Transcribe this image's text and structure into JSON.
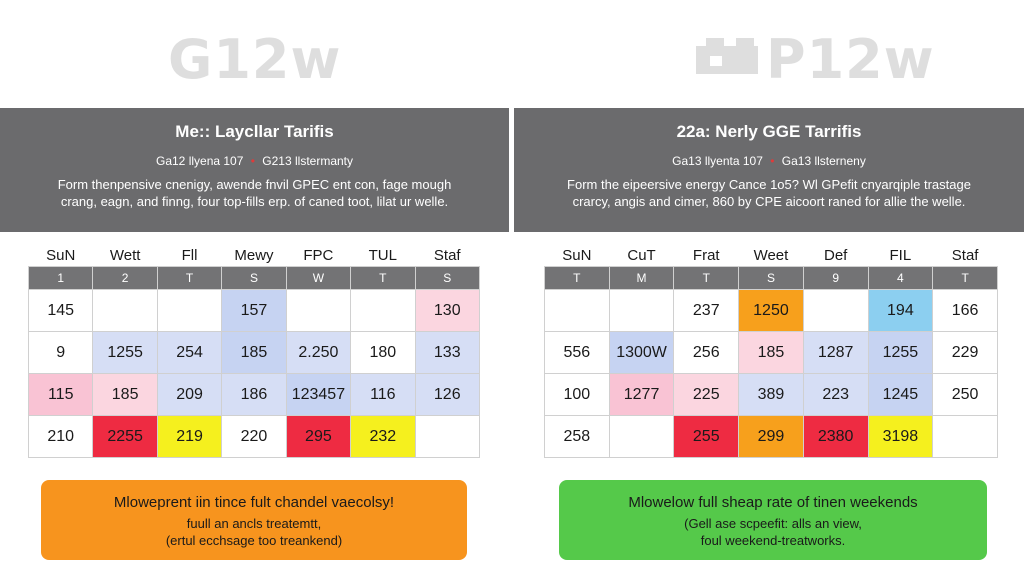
{
  "logos": {
    "left": "G12w",
    "right": "P12w"
  },
  "panels": [
    {
      "title": "Me:: Laycllar Tarifis",
      "sub_a": "Ga12 llyena 107",
      "sub_sep": "•",
      "sub_b": "G213 llstermanty",
      "desc_1": "Form thenpensive cnenigy, awende fnvil GPEC ent con, fage mough",
      "desc_2": "crang, eagn, and finng, four top-fills erp. of caned toot, lilat ur welle.",
      "days": [
        "SuN",
        "Wett",
        "Fll",
        "Mewy",
        "FPC",
        "TUL",
        "Staf"
      ],
      "nums": [
        "1",
        "2",
        "T",
        "S",
        "W",
        "T",
        "S"
      ],
      "rows": [
        [
          {
            "v": "145",
            "c": "white"
          },
          {
            "v": "",
            "c": "white"
          },
          {
            "v": "",
            "c": "white"
          },
          {
            "v": "157",
            "c": "blue"
          },
          {
            "v": "",
            "c": "white"
          },
          {
            "v": "",
            "c": "white"
          },
          {
            "v": "130",
            "c": "lpink"
          }
        ],
        [
          {
            "v": "9",
            "c": "white"
          },
          {
            "v": "1255",
            "c": "lblue"
          },
          {
            "v": "254",
            "c": "lblue"
          },
          {
            "v": "185",
            "c": "blue"
          },
          {
            "v": "2.250",
            "c": "lblue"
          },
          {
            "v": "180",
            "c": "white"
          },
          {
            "v": "133",
            "c": "lblue"
          }
        ],
        [
          {
            "v": "115",
            "c": "pink"
          },
          {
            "v": "185",
            "c": "lpink"
          },
          {
            "v": "209",
            "c": "lblue"
          },
          {
            "v": "186",
            "c": "lblue"
          },
          {
            "v": "123457",
            "c": "blue"
          },
          {
            "v": "116",
            "c": "lblue"
          },
          {
            "v": "126",
            "c": "lblue"
          }
        ],
        [
          {
            "v": "210",
            "c": "white"
          },
          {
            "v": "2255",
            "c": "red"
          },
          {
            "v": "219",
            "c": "yellow"
          },
          {
            "v": "220",
            "c": "white"
          },
          {
            "v": "295",
            "c": "red"
          },
          {
            "v": "232",
            "c": "yellow"
          },
          {
            "v": "",
            "c": "white"
          }
        ]
      ],
      "note_1": "Mloweprent iin tince fult chandel vaecolsy!",
      "note_2": "fuull an ancls treatemtt,",
      "note_3": "(ertul ecchsage too treankend)"
    },
    {
      "title": "22a: Nerly GGE Tarrifis",
      "sub_a": "Ga13 llyenta 107",
      "sub_sep": "•",
      "sub_b": "Ga13 llsterneny",
      "desc_1": "Form the eipeersive energy Cance 1o5? Wl GPefit cnyarqiple trastage",
      "desc_2": "crarcy, angis and cimer, 860 by CPE aicoort raned for allie the welle.",
      "days": [
        "SuN",
        "CuT",
        "Frat",
        "Weet",
        "Def",
        "FIL",
        "Staf"
      ],
      "nums": [
        "T",
        "M",
        "T",
        "S",
        "9",
        "4",
        "T"
      ],
      "rows": [
        [
          {
            "v": "",
            "c": "white"
          },
          {
            "v": "",
            "c": "white"
          },
          {
            "v": "237",
            "c": "white"
          },
          {
            "v": "1250",
            "c": "orange"
          },
          {
            "v": "",
            "c": "white"
          },
          {
            "v": "194",
            "c": "sky"
          },
          {
            "v": "166",
            "c": "white"
          }
        ],
        [
          {
            "v": "556",
            "c": "white"
          },
          {
            "v": "1300W",
            "c": "blue"
          },
          {
            "v": "256",
            "c": "white"
          },
          {
            "v": "185",
            "c": "lpink"
          },
          {
            "v": "1287",
            "c": "lblue"
          },
          {
            "v": "1255",
            "c": "blue"
          },
          {
            "v": "229",
            "c": "white"
          }
        ],
        [
          {
            "v": "100",
            "c": "white"
          },
          {
            "v": "1277",
            "c": "pink"
          },
          {
            "v": "225",
            "c": "lpink"
          },
          {
            "v": "389",
            "c": "lblue"
          },
          {
            "v": "223",
            "c": "lblue"
          },
          {
            "v": "1245",
            "c": "blue"
          },
          {
            "v": "250",
            "c": "white"
          }
        ],
        [
          {
            "v": "258",
            "c": "white"
          },
          {
            "v": "",
            "c": "white"
          },
          {
            "v": "255",
            "c": "red"
          },
          {
            "v": "299",
            "c": "orange"
          },
          {
            "v": "2380",
            "c": "red"
          },
          {
            "v": "3198",
            "c": "yellow"
          },
          {
            "v": "",
            "c": "white"
          }
        ]
      ],
      "note_1": "Mlowelow full sheap rate of tinen weekends",
      "note_2": "(Gell ase scpeefit: alls an view,",
      "note_3": "foul weekend-treatworks."
    }
  ],
  "colors": {
    "banner": "#6b6b6d",
    "header_row": "#737375",
    "note_left": "#f7941e",
    "note_right": "#55c94a",
    "red": "#ee2b42",
    "yellow": "#f5f01e",
    "orange": "#f7a01c",
    "blue": "#c6d3f2",
    "pink": "#f9c3d4"
  }
}
